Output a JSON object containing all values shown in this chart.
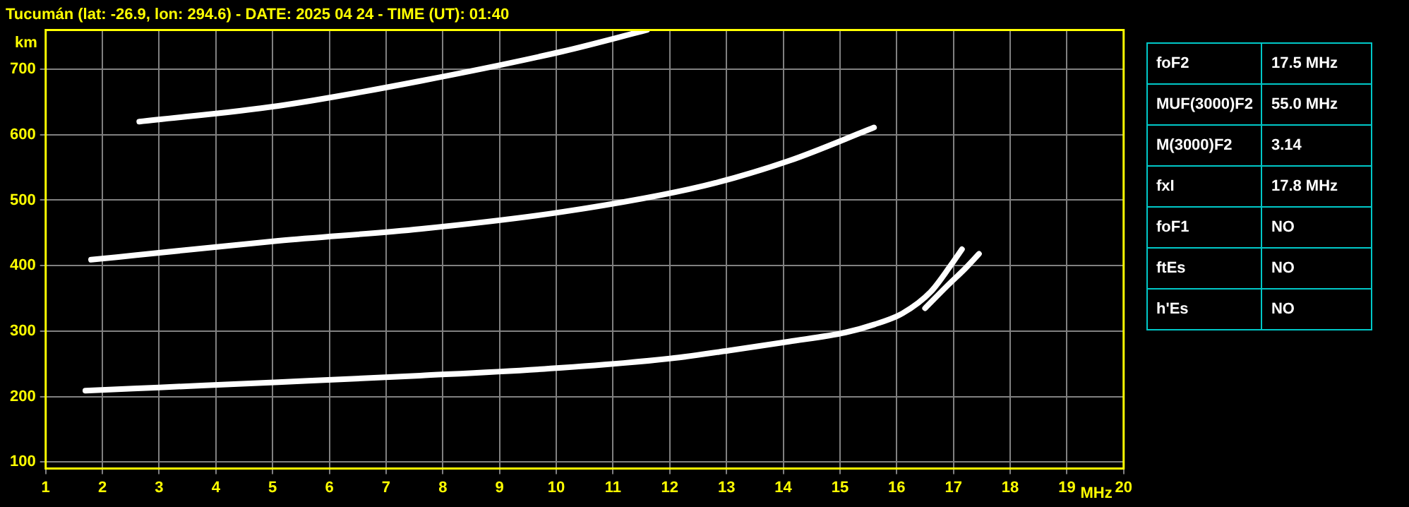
{
  "chart_data": {
    "type": "line",
    "title": "Tucumán (lat: -26.9, lon: 294.6) - DATE: 2025 04 24 - TIME (UT): 01:40",
    "xlabel": "MHz",
    "ylabel": "km",
    "xlim": [
      1,
      20
    ],
    "xticks": [
      1,
      2,
      3,
      4,
      5,
      6,
      7,
      8,
      9,
      10,
      11,
      12,
      13,
      14,
      15,
      16,
      17,
      18,
      19,
      20
    ],
    "ylim": [
      90,
      760
    ],
    "yticks": [
      100,
      200,
      300,
      400,
      500,
      600,
      700
    ],
    "grid": true,
    "legend": false,
    "marker": "none",
    "line_style": "solid",
    "series": [
      {
        "color": "#ffffff",
        "x": [
          1.7,
          3,
          5.1,
          7.6,
          10.1,
          12,
          13.1,
          14.1,
          15.1,
          15.6,
          16.1,
          16.6,
          16.95,
          17.15
        ],
        "values": [
          209,
          214,
          222,
          232,
          244,
          258,
          271,
          284,
          298,
          310,
          327,
          360,
          400,
          425
        ]
      },
      {
        "color": "#ffffff",
        "x": [
          16.5,
          16.9,
          17.2,
          17.45
        ],
        "values": [
          335,
          370,
          395,
          418
        ]
      },
      {
        "color": "#ffffff",
        "x": [
          1.8,
          2.6,
          5.1,
          7.6,
          10.1,
          12.6,
          14.1,
          15.6
        ],
        "values": [
          409,
          416,
          438,
          456,
          482,
          522,
          560,
          611
        ]
      },
      {
        "color": "#ffffff",
        "x": [
          2.65,
          5.1,
          7.6,
          10.1,
          11.6
        ],
        "values": [
          620,
          644,
          682,
          727,
          760
        ]
      }
    ],
    "annotations": [
      "foF2",
      "17.5 MHz",
      "MUF(3000)F2",
      "55.0 MHz",
      "M(3000)F2",
      "3.14",
      "fxI",
      "17.8 MHz",
      "foF1",
      "NO",
      "ftEs",
      "NO",
      "h'Es",
      "NO"
    ]
  }
}
